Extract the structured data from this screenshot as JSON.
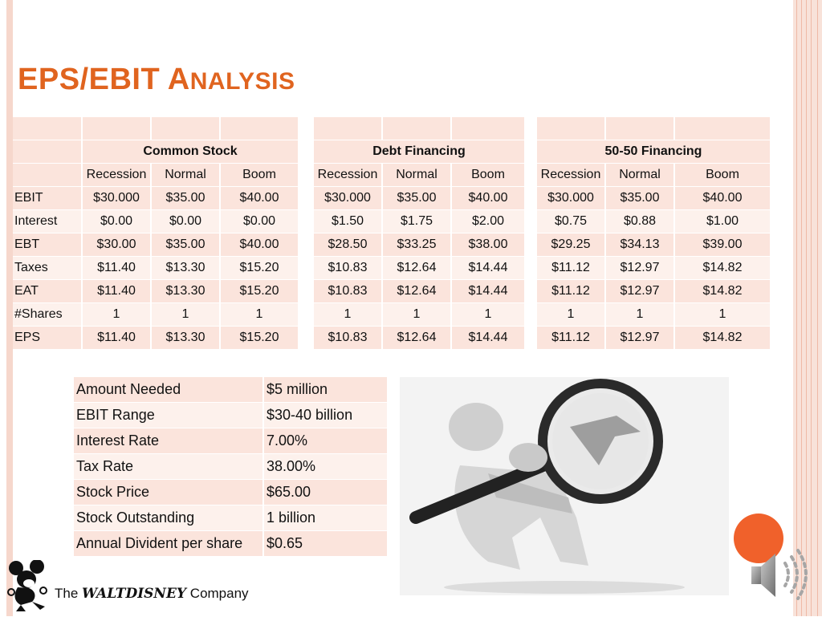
{
  "slide": {
    "title_lead": "EPS/EBIT A",
    "title_rest": "NALYSIS"
  },
  "financing_table": {
    "groups": [
      "Common Stock",
      "Debt Financing",
      "50-50 Financing"
    ],
    "scenarios": [
      "Recession",
      "Normal",
      "Boom",
      "Recession",
      "Normal",
      "Boom",
      "Recession",
      "Normal",
      "Boom"
    ],
    "rows": [
      {
        "label": "EBIT",
        "values": [
          "$30.000",
          "$35.00",
          "$40.00",
          "$30.000",
          "$35.00",
          "$40.00",
          "$30.000",
          "$35.00",
          "$40.00"
        ]
      },
      {
        "label": "Interest",
        "values": [
          "$0.00",
          "$0.00",
          "$0.00",
          "$1.50",
          "$1.75",
          "$2.00",
          "$0.75",
          "$0.88",
          "$1.00"
        ]
      },
      {
        "label": "EBT",
        "values": [
          "$30.00",
          "$35.00",
          "$40.00",
          "$28.50",
          "$33.25",
          "$38.00",
          "$29.25",
          "$34.13",
          "$39.00"
        ]
      },
      {
        "label": "Taxes",
        "values": [
          "$11.40",
          "$13.30",
          "$15.20",
          "$10.83",
          "$12.64",
          "$14.44",
          "$11.12",
          "$12.97",
          "$14.82"
        ]
      },
      {
        "label": "EAT",
        "values": [
          "$11.40",
          "$13.30",
          "$15.20",
          "$10.83",
          "$12.64",
          "$14.44",
          "$11.12",
          "$12.97",
          "$14.82"
        ]
      },
      {
        "label": "#Shares",
        "values": [
          "1",
          "1",
          "1",
          "1",
          "1",
          "1",
          "1",
          "1",
          "1"
        ]
      },
      {
        "label": "EPS",
        "values": [
          "$11.40",
          "$13.30",
          "$15.20",
          "$10.83",
          "$12.64",
          "$14.44",
          "$11.12",
          "$12.97",
          "$14.82"
        ]
      }
    ]
  },
  "assumptions": [
    {
      "label": "Amount Needed",
      "value": "$5 million"
    },
    {
      "label": "EBIT Range",
      "value": "$30-40 billion"
    },
    {
      "label": "Interest Rate",
      "value": "7.00%"
    },
    {
      "label": "Tax Rate",
      "value": "38.00%"
    },
    {
      "label": "Stock Price",
      "value": "$65.00"
    },
    {
      "label": "Stock Outstanding",
      "value": "1 billion"
    },
    {
      "label": "Annual Divident per share",
      "value": "$0.65"
    }
  ],
  "logo": {
    "prefix": "The ",
    "walt": "WALT",
    "disney": "DISNEY",
    "suffix": " Company"
  },
  "icons": {
    "audio": "speaker-icon",
    "nav": "orange-circle-icon",
    "mascot": "mickey-mouse-icon",
    "illustration": "magnifying-glass-figure-icon"
  },
  "colors": {
    "accent": "#e0641f",
    "table_fill": "#fbe4dc",
    "table_fill_alt": "#fdf1ec",
    "circle": "#f0612b",
    "frame": "#f6d7cc"
  }
}
